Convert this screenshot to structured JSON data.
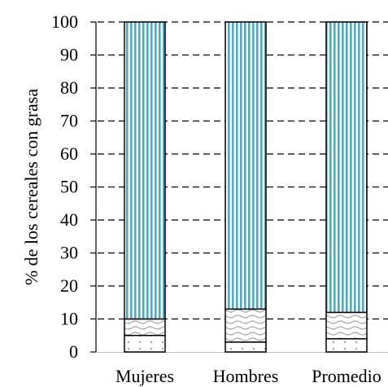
{
  "chart_data": {
    "type": "bar",
    "stacked": true,
    "categories": [
      "Mujeres",
      "Hombres",
      "Promedio"
    ],
    "series": [
      {
        "values": [
          5,
          3,
          4
        ],
        "pattern": "dots",
        "color": "#ffffff"
      },
      {
        "values": [
          5,
          10,
          8
        ],
        "pattern": "waves",
        "color": "#bfbfbf"
      },
      {
        "values": [
          90,
          87,
          88
        ],
        "pattern": "vertical-stripes",
        "color": "#4bacc6"
      }
    ],
    "ylabel": "% de los cereales con grasa",
    "xlabel": "",
    "ylim": [
      0,
      100
    ],
    "yticks": [
      0,
      10,
      20,
      30,
      40,
      50,
      60,
      70,
      80,
      90,
      100
    ],
    "grid": "horizontal-dashed",
    "legend": "none"
  }
}
